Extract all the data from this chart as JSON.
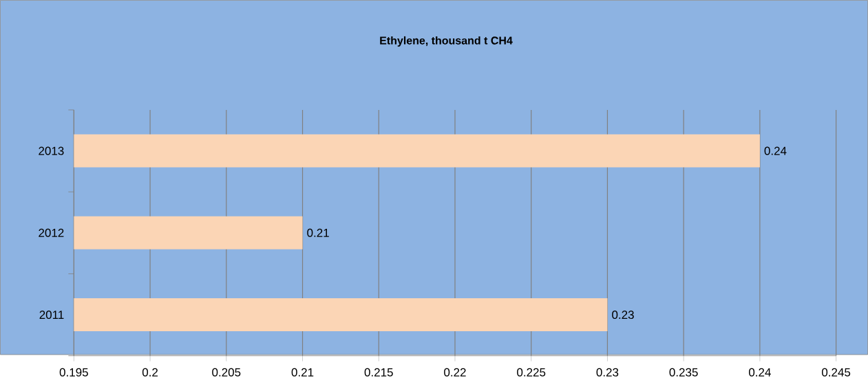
{
  "chart_data": {
    "type": "bar",
    "orientation": "horizontal",
    "title": "Ethylene, thousand t CH4",
    "categories": [
      "2013",
      "2012",
      "2011"
    ],
    "values": [
      0.24,
      0.21,
      0.23
    ],
    "color": "#fbd5b5",
    "xlim": [
      0.195,
      0.245
    ],
    "xticks": [
      0.195,
      0.2,
      0.205,
      0.21,
      0.215,
      0.22,
      0.225,
      0.23,
      0.235,
      0.24,
      0.245
    ],
    "grid": "x",
    "data_labels": true
  }
}
